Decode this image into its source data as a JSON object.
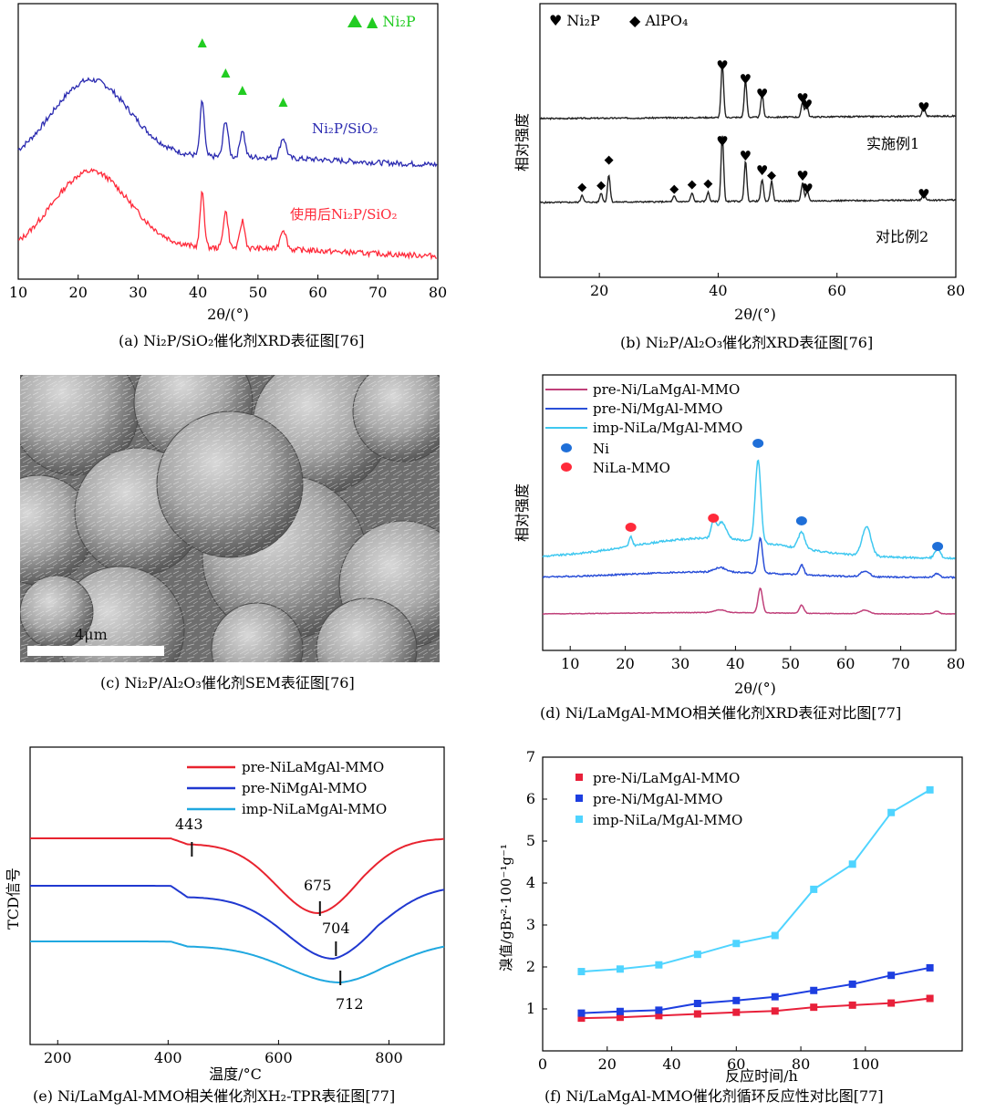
{
  "figure_title": "",
  "colors": {
    "blue": "#2a2ab0",
    "red": "#ff2a3a",
    "green": "#22cc22",
    "black": "#111111",
    "pink": "#c0407a",
    "mid_blue": "#2a4fd8",
    "light_blue": "#3fc8f0",
    "ni_dot": "#1f6fd8",
    "nila_dot": "#ff2a3a",
    "tpr_red": "#e8232f",
    "tpr_blue": "#2038d0",
    "tpr_cyan": "#20a8e0",
    "f_red": "#e8203a",
    "f_blue": "#1d3ee0",
    "f_cyan": "#4fd4ff"
  },
  "panels": {
    "a": {
      "caption": "(a) Ni₂P/SiO₂催化剂XRD表征图[76]",
      "xlabel": "2θ/(°)",
      "legend": "▲ Ni₂P",
      "curve_labels": [
        "Ni₂P/SiO₂",
        "使用后Ni₂P/SiO₂"
      ],
      "xticks": [
        "10",
        "20",
        "30",
        "40",
        "50",
        "60",
        "70",
        "80"
      ]
    },
    "b": {
      "caption": "(b) Ni₂P/Al₂O₃催化剂XRD表征图[76]",
      "xlabel": "2θ/(°)",
      "ylabel": "相对强度",
      "legend": [
        "♥ Ni₂P",
        "◆ AlPO₄"
      ],
      "curve_labels": [
        "实施例1",
        "对比例2"
      ],
      "xticks": [
        "20",
        "40",
        "60",
        "80"
      ]
    },
    "c": {
      "caption": "(c) Ni₂P/Al₂O₃催化剂SEM表征图[76]",
      "scale_label": "4μm"
    },
    "d": {
      "caption": "(d) Ni/LaMgAl-MMO相关催化剂XRD表征对比图[77]",
      "xlabel": "2θ/(°)",
      "ylabel": "相对强度",
      "legend": [
        "pre-Ni/LaMgAl-MMO",
        "pre-Ni/MgAl-MMO",
        "imp-NiLa/MgAl-MMO",
        "Ni",
        "NiLa-MMO"
      ],
      "xticks": [
        "10",
        "20",
        "30",
        "40",
        "50",
        "60",
        "70",
        "80"
      ]
    },
    "e": {
      "caption": "(e) Ni/LaMgAl-MMO相关催化剂XH₂-TPR表征图[77]",
      "xlabel": "温度/°C",
      "ylabel": "TCD信号",
      "legend": [
        "pre-NiLaMgAl-MMO",
        "pre-NiMgAl-MMO",
        "imp-NiLaMgAl-MMO"
      ],
      "peak_labels": [
        "443",
        "675",
        "704",
        "712"
      ],
      "xticks": [
        "200",
        "400",
        "600",
        "800"
      ]
    },
    "f": {
      "caption": "(f) Ni/LaMgAl-MMO催化剂循环反应性对比图[77]",
      "xlabel": "反应时间/h",
      "ylabel": "溴值/gBr²·100⁻¹g⁻¹",
      "legend": [
        "pre-Ni/LaMgAl-MMO",
        "pre-Ni/MgAl-MMO",
        "imp-NiLa/MgAl-MMO"
      ],
      "xticks": [
        "0",
        "20",
        "40",
        "60",
        "80",
        "100"
      ],
      "yticks": [
        "1",
        "2",
        "3",
        "4",
        "5",
        "6",
        "7"
      ]
    }
  },
  "chart_data": [
    {
      "panel": "a",
      "type": "line",
      "xlabel": "2θ/(°)",
      "xlim": [
        10,
        80
      ],
      "series": [
        {
          "name": "Ni₂P/SiO₂",
          "peaks": [
            22,
            40.7,
            44.6,
            47.4,
            54.2
          ]
        },
        {
          "name": "使用后Ni₂P/SiO₂",
          "peaks": [
            22,
            40.7,
            44.6,
            47.4,
            54.2
          ]
        }
      ],
      "markers": {
        "name": "Ni₂P",
        "x": [
          40.7,
          44.6,
          47.4,
          54.2
        ]
      }
    },
    {
      "panel": "b",
      "type": "line",
      "xlabel": "2θ/(°)",
      "ylabel": "相对强度",
      "xlim": [
        10,
        80
      ],
      "series": [
        {
          "name": "实施例1",
          "peaks": [
            40.7,
            44.6,
            47.4,
            54.2,
            54.9,
            74.6
          ]
        },
        {
          "name": "对比例2",
          "peaks": [
            17.1,
            20.3,
            21.6,
            32.6,
            35.6,
            38.3,
            40.7,
            44.6,
            47.4,
            49.0,
            54.2,
            55.0,
            74.6
          ]
        }
      ]
    },
    {
      "panel": "d",
      "type": "line",
      "xlabel": "2θ/(°)",
      "ylabel": "相对强度",
      "xlim": [
        5,
        80
      ],
      "series": [
        {
          "name": "pre-Ni/LaMgAl-MMO",
          "peaks": [
            37.2,
            44.5,
            52,
            63.5,
            76.5
          ]
        },
        {
          "name": "pre-Ni/MgAl-MMO",
          "peaks": [
            37.2,
            44.5,
            52,
            63.5,
            76.5
          ]
        },
        {
          "name": "imp-NiLa/MgAl-MMO",
          "peaks": [
            21,
            36,
            37.5,
            44.1,
            52,
            63.8,
            76.7
          ]
        }
      ],
      "markers": [
        {
          "name": "Ni",
          "x": [
            44.1,
            52,
            76.7
          ]
        },
        {
          "name": "NiLa-MMO",
          "x": [
            21,
            36
          ]
        }
      ]
    },
    {
      "panel": "e",
      "type": "line",
      "xlabel": "温度/°C",
      "ylabel": "TCD信号",
      "xlim": [
        150,
        900
      ],
      "series": [
        {
          "name": "pre-NiLaMgAl-MMO",
          "peak_markers": [
            443,
            675
          ]
        },
        {
          "name": "pre-NiMgAl-MMO",
          "peak_markers": [
            704
          ]
        },
        {
          "name": "imp-NiLaMgAl-MMO",
          "peak_markers": [
            712
          ]
        }
      ]
    },
    {
      "panel": "f",
      "type": "line",
      "xlabel": "反应时间/h",
      "ylabel": "溴值/gBr²·100⁻¹g⁻¹",
      "xlim": [
        0,
        130
      ],
      "ylim": [
        0,
        7
      ],
      "x": [
        12,
        24,
        36,
        48,
        60,
        72,
        84,
        96,
        108,
        120
      ],
      "series": [
        {
          "name": "pre-Ni/LaMgAl-MMO",
          "values": [
            0.78,
            0.8,
            0.84,
            0.88,
            0.92,
            0.95,
            1.04,
            1.09,
            1.14,
            1.25
          ]
        },
        {
          "name": "pre-Ni/MgAl-MMO",
          "values": [
            0.9,
            0.94,
            0.97,
            1.13,
            1.2,
            1.29,
            1.44,
            1.59,
            1.8,
            1.98
          ]
        },
        {
          "name": "imp-NiLa/MgAl-MMO",
          "values": [
            1.89,
            1.95,
            2.05,
            2.3,
            2.56,
            2.75,
            3.85,
            4.45,
            5.68,
            6.22
          ]
        }
      ]
    }
  ]
}
